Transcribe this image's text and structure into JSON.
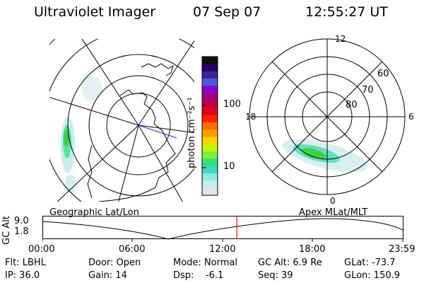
{
  "header": {
    "title": "Ultraviolet Imager",
    "date": "07 Sep 07",
    "time": "12:55:27 UT"
  },
  "colorbar": {
    "unit_label": "photon cm⁻²s⁻¹",
    "ticks": [
      "100",
      "10"
    ],
    "colors": [
      "#101010",
      "#2a0060",
      "#3c2296",
      "#4a5ad8",
      "#8a00c8",
      "#a00080",
      "#c00040",
      "#e00020",
      "#ff2000",
      "#ff6a00",
      "#ff9c00",
      "#ffd200",
      "#c8f000",
      "#7af040",
      "#30e080",
      "#40d8c0",
      "#90e8e8",
      "#c8ecee",
      "#dde8ec"
    ]
  },
  "polar_plot": {
    "labels": {
      "top": "12",
      "bottom": "0",
      "left": "18",
      "right": "6"
    },
    "ring_labels": [
      "60",
      "70",
      "80"
    ]
  },
  "timeline": {
    "left_map_label": "Geographic Lat/Lon",
    "right_map_label": "Apex MLat/MLT",
    "axis_label": "GC Alt",
    "y_ticks": [
      "9.0",
      "1.8"
    ],
    "x_ticks": [
      "00:00",
      "06:00",
      "12:00",
      "18:00",
      "23:59"
    ],
    "cursor_time": "12:55:27",
    "cursor_fraction_of_day": 0.5385
  },
  "info": {
    "flt": "Flt: LBHL",
    "ip": "IP: 36.0",
    "door": "Door: Open",
    "gain": "Gain: 14",
    "mode": "Mode: Normal",
    "dsp": "Dsp:    -6.1",
    "gc_alt": "GC Alt: 6.9 Re",
    "seq": "Seq: 39",
    "glat": "GLat: -73.7",
    "glon": "GLon: 150.9"
  }
}
